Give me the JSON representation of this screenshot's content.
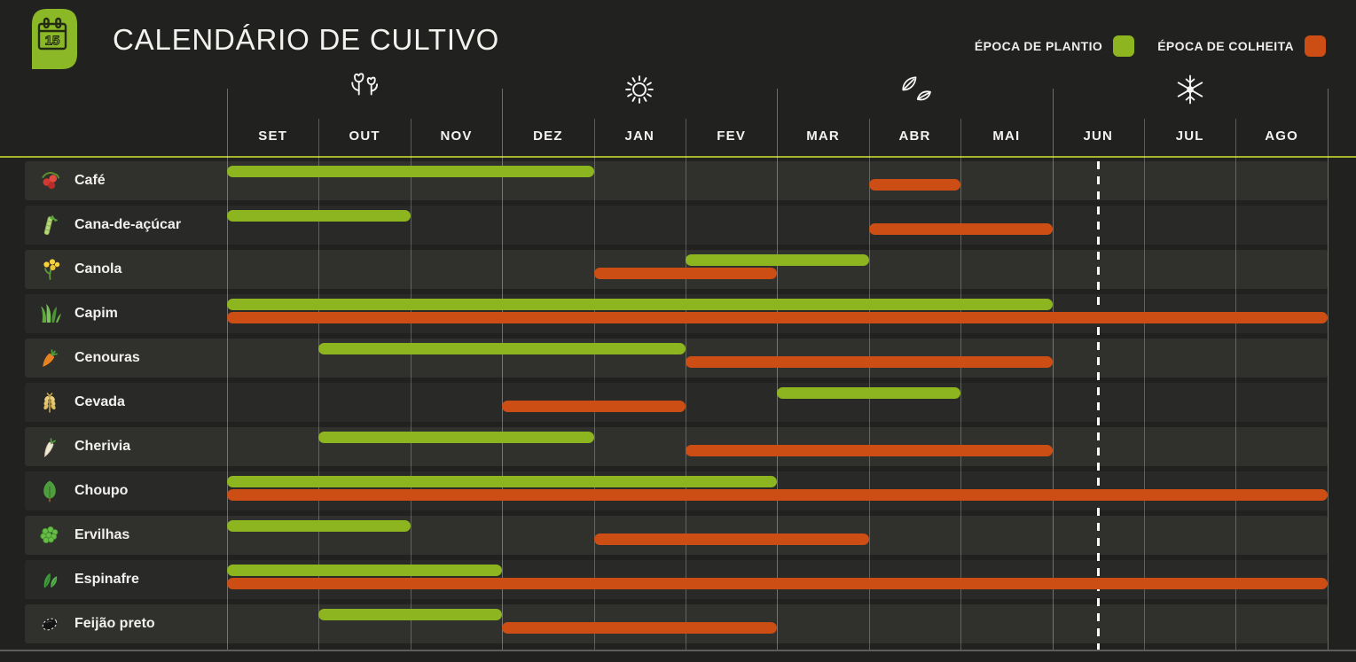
{
  "header": {
    "title": "CALENDÁRIO DE CULTIVO",
    "icon": "calendar-icon",
    "icon_day": "15"
  },
  "legend": {
    "planting": {
      "label": "ÉPOCA DE PLANTIO",
      "color": "#8cb51f"
    },
    "harvest": {
      "label": "ÉPOCA DE COLHEITA",
      "color": "#cc4e14"
    }
  },
  "chart_data": {
    "type": "bar",
    "subtype": "gantt-range",
    "months": [
      "SET",
      "OUT",
      "NOV",
      "DEZ",
      "JAN",
      "FEV",
      "MAR",
      "ABR",
      "MAI",
      "JUN",
      "JUL",
      "AGO"
    ],
    "seasons": [
      {
        "icon": "flowers-icon",
        "center_month_index": 1.5
      },
      {
        "icon": "sun-icon",
        "center_month_index": 4.5
      },
      {
        "icon": "autumn-leaves-icon",
        "center_month_index": 7.5
      },
      {
        "icon": "snowflake-icon",
        "center_month_index": 10.5
      }
    ],
    "season_boundaries": [
      0,
      3,
      6,
      9,
      12
    ],
    "current_date_marker_month_index": 9.5,
    "series_legend_position": "top-right",
    "rows": [
      {
        "label": "Café",
        "icon": "coffee-berries-icon",
        "planting": [
          0,
          4
        ],
        "planting_range": "SET–DEZ",
        "harvest": [
          7,
          8
        ],
        "harvest_range": "ABR"
      },
      {
        "label": "Cana-de-açúcar",
        "icon": "sugarcane-icon",
        "planting": [
          0,
          2
        ],
        "planting_range": "SET–OUT",
        "harvest": [
          7,
          9
        ],
        "harvest_range": "ABR–MAI"
      },
      {
        "label": "Canola",
        "icon": "canola-flower-icon",
        "planting": [
          5,
          7
        ],
        "planting_range": "FEV–MAR",
        "harvest": [
          4,
          6
        ],
        "harvest_range": "JAN–FEV"
      },
      {
        "label": "Capim",
        "icon": "grass-icon",
        "planting": [
          0,
          9
        ],
        "planting_range": "SET–MAI",
        "harvest": [
          0,
          12
        ],
        "harvest_range": "SET–AGO"
      },
      {
        "label": "Cenouras",
        "icon": "carrot-icon",
        "planting": [
          1,
          5
        ],
        "planting_range": "OUT–JAN",
        "harvest": [
          5,
          9
        ],
        "harvest_range": "FEV–MAI"
      },
      {
        "label": "Cevada",
        "icon": "barley-icon",
        "planting": [
          6,
          8
        ],
        "planting_range": "MAR–ABR",
        "harvest": [
          3,
          5
        ],
        "harvest_range": "DEZ–JAN"
      },
      {
        "label": "Cherivia",
        "icon": "parsnip-icon",
        "planting": [
          1,
          4
        ],
        "planting_range": "OUT–DEZ",
        "harvest": [
          5,
          9
        ],
        "harvest_range": "FEV–MAI"
      },
      {
        "label": "Choupo",
        "icon": "poplar-tree-icon",
        "planting": [
          0,
          6
        ],
        "planting_range": "SET–FEV",
        "harvest": [
          0,
          12
        ],
        "harvest_range": "SET–AGO"
      },
      {
        "label": "Ervilhas",
        "icon": "peas-icon",
        "planting": [
          0,
          2
        ],
        "planting_range": "SET–OUT",
        "harvest": [
          4,
          7
        ],
        "harvest_range": "JAN–MAR"
      },
      {
        "label": "Espinafre",
        "icon": "spinach-icon",
        "planting": [
          0,
          3
        ],
        "planting_range": "SET–NOV",
        "harvest": [
          0,
          12
        ],
        "harvest_range": "SET–AGO"
      },
      {
        "label": "Feijão preto",
        "icon": "black-bean-icon",
        "planting": [
          1,
          3
        ],
        "planting_range": "OUT–NOV",
        "harvest": [
          3,
          6
        ],
        "harvest_range": "DEZ–FEV"
      }
    ]
  }
}
